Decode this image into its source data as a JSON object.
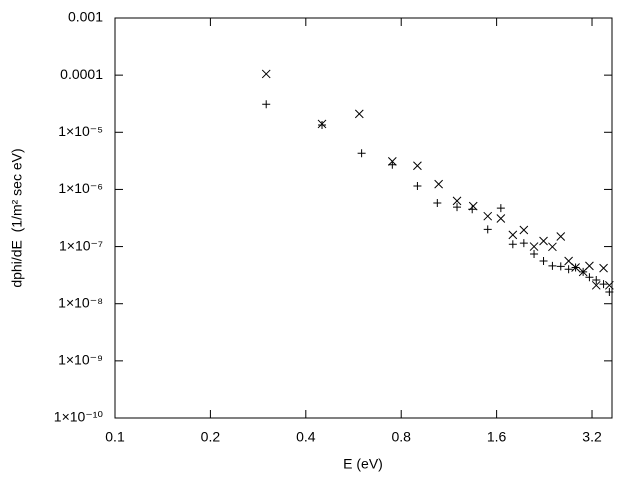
{
  "chart_data": {
    "type": "scatter",
    "x_label": "E (eV)",
    "y_label": "dphi/dE  (1/m² sec eV)",
    "xscale": "log",
    "yscale": "log",
    "xlim": [
      0.1,
      3.7
    ],
    "ylim": [
      1e-10,
      0.001
    ],
    "xticks": [
      0.1,
      0.2,
      0.4,
      0.8,
      1.6,
      3.2
    ],
    "yticks": [
      {
        "value": 1e-10,
        "label": "1×10⁻¹⁰"
      },
      {
        "value": 1e-09,
        "label": "1×10⁻⁹"
      },
      {
        "value": 1e-08,
        "label": "1×10⁻⁸"
      },
      {
        "value": 1e-07,
        "label": "1×10⁻⁷"
      },
      {
        "value": 1e-06,
        "label": "1×10⁻⁶"
      },
      {
        "value": 1e-05,
        "label": "1×10⁻⁵"
      },
      0.0001,
      0.001
    ],
    "series": [
      {
        "marker": "plus",
        "color": "#000000",
        "x": [
          0.3,
          0.45,
          0.6,
          0.75,
          0.9,
          1.04,
          1.2,
          1.34,
          1.5,
          1.65,
          1.8,
          1.95,
          2.1,
          2.25,
          2.4,
          2.55,
          2.7,
          2.84,
          3.0,
          3.14,
          3.3,
          3.48,
          3.63
        ],
        "values": [
          3.1e-05,
          1.34e-05,
          4.3e-06,
          2.7e-06,
          1.15e-06,
          5.8e-07,
          4.9e-07,
          4.5e-07,
          2e-07,
          4.7e-07,
          1.1e-07,
          1.15e-07,
          7.4e-08,
          5.6e-08,
          4.6e-08,
          4.5e-08,
          4e-08,
          4.3e-08,
          3.6e-08,
          2.9e-08,
          2.6e-08,
          2.2e-08,
          1.6e-08
        ]
      },
      {
        "marker": "cross",
        "color": "#000000",
        "x": [
          0.3,
          0.45,
          0.59,
          0.75,
          0.9,
          1.05,
          1.2,
          1.35,
          1.5,
          1.65,
          1.8,
          1.95,
          2.1,
          2.25,
          2.4,
          2.55,
          2.7,
          2.84,
          3.0,
          3.14,
          3.3,
          3.48,
          3.63
        ],
        "values": [
          0.000105,
          1.4e-05,
          2.1e-05,
          3.1e-06,
          2.6e-06,
          1.24e-06,
          6.3e-07,
          5.1e-07,
          3.4e-07,
          3.1e-07,
          1.6e-07,
          1.95e-07,
          1e-07,
          1.25e-07,
          9.9e-08,
          1.5e-07,
          5.6e-08,
          4.3e-08,
          3.6e-08,
          4.6e-08,
          2.1e-08,
          4.2e-08,
          2.1e-08
        ]
      }
    ]
  }
}
